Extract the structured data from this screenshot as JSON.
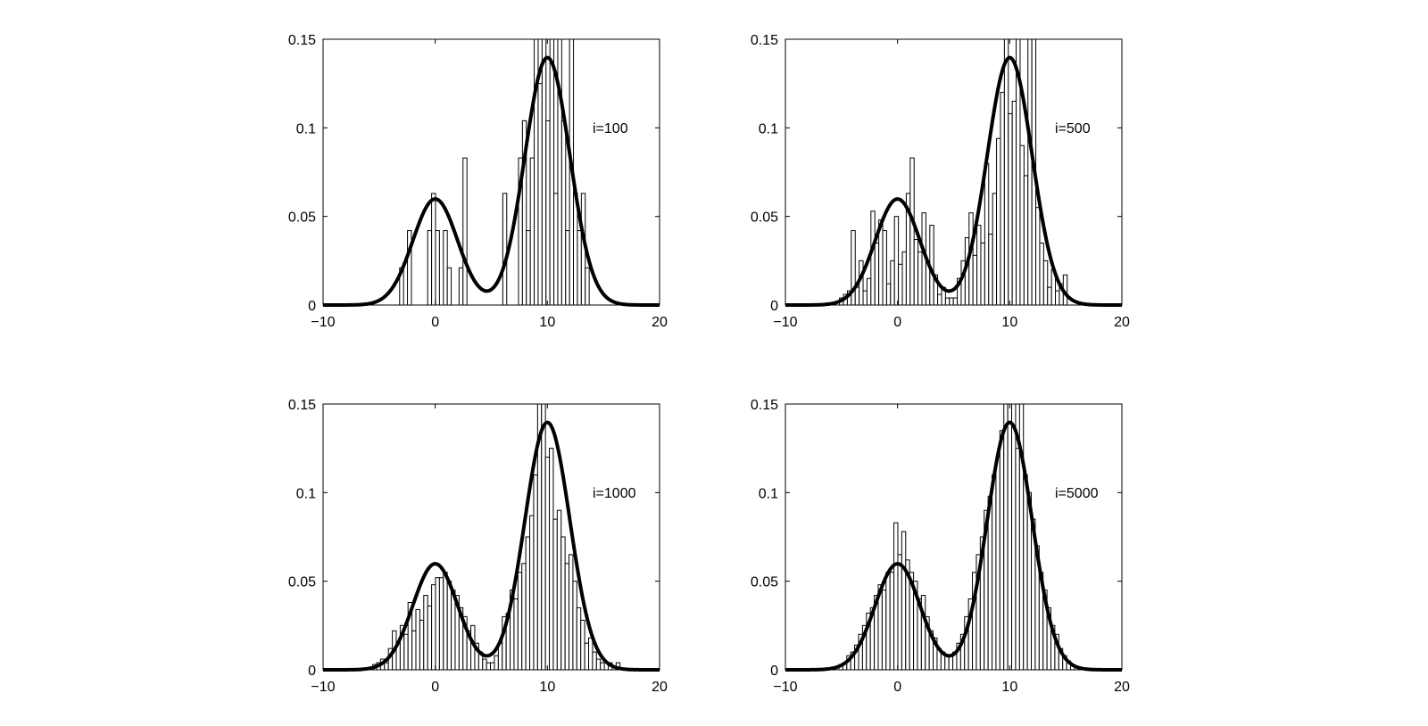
{
  "chart_data": [
    {
      "type": "bar",
      "label": "i=100",
      "xlim": [
        -10,
        20
      ],
      "ylim": [
        0,
        0.15
      ],
      "xticks": [
        -10,
        0,
        10,
        20
      ],
      "xtick_labels": [
        "−10",
        "0",
        "10",
        "20"
      ],
      "yticks": [
        0,
        0.05,
        0.1,
        0.15
      ],
      "ytick_labels": [
        "0",
        "0.05",
        "0.1",
        "0.15"
      ],
      "bin_width": 0.35,
      "histogram": [
        {
          "x": -3.0,
          "y": 0.021
        },
        {
          "x": -2.3,
          "y": 0.042
        },
        {
          "x": -0.5,
          "y": 0.042
        },
        {
          "x": -0.15,
          "y": 0.063
        },
        {
          "x": 0.2,
          "y": 0.042
        },
        {
          "x": 0.9,
          "y": 0.042
        },
        {
          "x": 1.25,
          "y": 0.021
        },
        {
          "x": 2.3,
          "y": 0.021
        },
        {
          "x": 2.65,
          "y": 0.083
        },
        {
          "x": 6.2,
          "y": 0.063
        },
        {
          "x": 7.6,
          "y": 0.083
        },
        {
          "x": 7.95,
          "y": 0.104
        },
        {
          "x": 8.3,
          "y": 0.042
        },
        {
          "x": 8.65,
          "y": 0.083
        },
        {
          "x": 9.0,
          "y": 0.15
        },
        {
          "x": 9.35,
          "y": 0.125
        },
        {
          "x": 9.7,
          "y": 0.15
        },
        {
          "x": 10.05,
          "y": 0.104
        },
        {
          "x": 10.4,
          "y": 0.15
        },
        {
          "x": 10.75,
          "y": 0.063
        },
        {
          "x": 11.1,
          "y": 0.15
        },
        {
          "x": 11.45,
          "y": 0.104
        },
        {
          "x": 11.8,
          "y": 0.042
        },
        {
          "x": 12.15,
          "y": 0.15
        },
        {
          "x": 12.5,
          "y": 0.063
        },
        {
          "x": 12.85,
          "y": 0.042
        },
        {
          "x": 13.2,
          "y": 0.063
        },
        {
          "x": 13.55,
          "y": 0.021
        }
      ]
    },
    {
      "type": "bar",
      "label": "i=500",
      "xlim": [
        -10,
        20
      ],
      "ylim": [
        0,
        0.15
      ],
      "xticks": [
        -10,
        0,
        10,
        20
      ],
      "xtick_labels": [
        "−10",
        "0",
        "10",
        "20"
      ],
      "yticks": [
        0,
        0.05,
        0.1,
        0.15
      ],
      "ytick_labels": [
        "0",
        "0.05",
        "0.1",
        "0.15"
      ],
      "bin_width": 0.35,
      "histogram": [
        {
          "x": -5.0,
          "y": 0.004
        },
        {
          "x": -4.65,
          "y": 0.006
        },
        {
          "x": -4.3,
          "y": 0.008
        },
        {
          "x": -3.95,
          "y": 0.042
        },
        {
          "x": -3.6,
          "y": 0.01
        },
        {
          "x": -3.25,
          "y": 0.025
        },
        {
          "x": -2.9,
          "y": 0.008
        },
        {
          "x": -2.55,
          "y": 0.015
        },
        {
          "x": -2.2,
          "y": 0.053
        },
        {
          "x": -1.85,
          "y": 0.035
        },
        {
          "x": -1.5,
          "y": 0.048
        },
        {
          "x": -1.15,
          "y": 0.042
        },
        {
          "x": -0.8,
          "y": 0.012
        },
        {
          "x": -0.45,
          "y": 0.025
        },
        {
          "x": -0.1,
          "y": 0.05
        },
        {
          "x": 0.25,
          "y": 0.023
        },
        {
          "x": 0.6,
          "y": 0.03
        },
        {
          "x": 0.95,
          "y": 0.063
        },
        {
          "x": 1.3,
          "y": 0.083
        },
        {
          "x": 1.65,
          "y": 0.037
        },
        {
          "x": 2.0,
          "y": 0.03
        },
        {
          "x": 2.35,
          "y": 0.052
        },
        {
          "x": 2.7,
          "y": 0.025
        },
        {
          "x": 3.05,
          "y": 0.045
        },
        {
          "x": 3.4,
          "y": 0.017
        },
        {
          "x": 3.75,
          "y": 0.006
        },
        {
          "x": 4.1,
          "y": 0.01
        },
        {
          "x": 4.45,
          "y": 0.004
        },
        {
          "x": 4.8,
          "y": 0.004
        },
        {
          "x": 5.15,
          "y": 0.004
        },
        {
          "x": 5.5,
          "y": 0.015
        },
        {
          "x": 5.85,
          "y": 0.025
        },
        {
          "x": 6.2,
          "y": 0.038
        },
        {
          "x": 6.55,
          "y": 0.052
        },
        {
          "x": 6.9,
          "y": 0.028
        },
        {
          "x": 7.25,
          "y": 0.045
        },
        {
          "x": 7.6,
          "y": 0.035
        },
        {
          "x": 7.95,
          "y": 0.08
        },
        {
          "x": 8.3,
          "y": 0.04
        },
        {
          "x": 8.65,
          "y": 0.063
        },
        {
          "x": 9.0,
          "y": 0.094
        },
        {
          "x": 9.35,
          "y": 0.12
        },
        {
          "x": 9.7,
          "y": 0.15
        },
        {
          "x": 10.05,
          "y": 0.108
        },
        {
          "x": 10.4,
          "y": 0.115
        },
        {
          "x": 10.75,
          "y": 0.15
        },
        {
          "x": 11.1,
          "y": 0.09
        },
        {
          "x": 11.45,
          "y": 0.073
        },
        {
          "x": 11.8,
          "y": 0.15
        },
        {
          "x": 12.15,
          "y": 0.15
        },
        {
          "x": 12.5,
          "y": 0.055
        },
        {
          "x": 12.85,
          "y": 0.035
        },
        {
          "x": 13.2,
          "y": 0.025
        },
        {
          "x": 13.55,
          "y": 0.01
        },
        {
          "x": 13.9,
          "y": 0.02
        },
        {
          "x": 14.25,
          "y": 0.008
        },
        {
          "x": 14.6,
          "y": 0.012
        },
        {
          "x": 14.95,
          "y": 0.017
        }
      ]
    },
    {
      "type": "bar",
      "label": "i=1000",
      "xlim": [
        -10,
        20
      ],
      "ylim": [
        0,
        0.15
      ],
      "xticks": [
        -10,
        0,
        10,
        20
      ],
      "xtick_labels": [
        "−10",
        "0",
        "10",
        "20"
      ],
      "yticks": [
        0,
        0.05,
        0.1,
        0.15
      ],
      "ytick_labels": [
        "0",
        "0.05",
        "0.1",
        "0.15"
      ],
      "bin_width": 0.35,
      "histogram": [
        {
          "x": -5.4,
          "y": 0.003
        },
        {
          "x": -5.05,
          "y": 0.004
        },
        {
          "x": -4.7,
          "y": 0.006
        },
        {
          "x": -4.35,
          "y": 0.004
        },
        {
          "x": -4.0,
          "y": 0.012
        },
        {
          "x": -3.65,
          "y": 0.022
        },
        {
          "x": -3.3,
          "y": 0.015
        },
        {
          "x": -2.95,
          "y": 0.025
        },
        {
          "x": -2.6,
          "y": 0.02
        },
        {
          "x": -2.25,
          "y": 0.038
        },
        {
          "x": -1.9,
          "y": 0.022
        },
        {
          "x": -1.55,
          "y": 0.034
        },
        {
          "x": -1.2,
          "y": 0.028
        },
        {
          "x": -0.85,
          "y": 0.042
        },
        {
          "x": -0.5,
          "y": 0.036
        },
        {
          "x": -0.15,
          "y": 0.048
        },
        {
          "x": 0.2,
          "y": 0.052
        },
        {
          "x": 0.55,
          "y": 0.052
        },
        {
          "x": 0.9,
          "y": 0.055
        },
        {
          "x": 1.25,
          "y": 0.05
        },
        {
          "x": 1.6,
          "y": 0.045
        },
        {
          "x": 1.95,
          "y": 0.042
        },
        {
          "x": 2.3,
          "y": 0.035
        },
        {
          "x": 2.65,
          "y": 0.03
        },
        {
          "x": 3.0,
          "y": 0.022
        },
        {
          "x": 3.35,
          "y": 0.025
        },
        {
          "x": 3.7,
          "y": 0.015
        },
        {
          "x": 4.05,
          "y": 0.01
        },
        {
          "x": 4.4,
          "y": 0.006
        },
        {
          "x": 4.75,
          "y": 0.004
        },
        {
          "x": 5.1,
          "y": 0.004
        },
        {
          "x": 5.45,
          "y": 0.008
        },
        {
          "x": 5.8,
          "y": 0.015
        },
        {
          "x": 6.15,
          "y": 0.03
        },
        {
          "x": 6.5,
          "y": 0.032
        },
        {
          "x": 6.85,
          "y": 0.045
        },
        {
          "x": 7.2,
          "y": 0.04
        },
        {
          "x": 7.55,
          "y": 0.055
        },
        {
          "x": 7.9,
          "y": 0.06
        },
        {
          "x": 8.25,
          "y": 0.075
        },
        {
          "x": 8.6,
          "y": 0.087
        },
        {
          "x": 8.95,
          "y": 0.11
        },
        {
          "x": 9.3,
          "y": 0.15
        },
        {
          "x": 9.65,
          "y": 0.15
        },
        {
          "x": 10.0,
          "y": 0.12
        },
        {
          "x": 10.35,
          "y": 0.125
        },
        {
          "x": 10.7,
          "y": 0.085
        },
        {
          "x": 11.05,
          "y": 0.09
        },
        {
          "x": 11.4,
          "y": 0.075
        },
        {
          "x": 11.75,
          "y": 0.06
        },
        {
          "x": 12.1,
          "y": 0.065
        },
        {
          "x": 12.45,
          "y": 0.05
        },
        {
          "x": 12.8,
          "y": 0.035
        },
        {
          "x": 13.15,
          "y": 0.028
        },
        {
          "x": 13.5,
          "y": 0.015
        },
        {
          "x": 13.85,
          "y": 0.018
        },
        {
          "x": 14.2,
          "y": 0.01
        },
        {
          "x": 14.55,
          "y": 0.006
        },
        {
          "x": 14.9,
          "y": 0.004
        },
        {
          "x": 15.6,
          "y": 0.004
        },
        {
          "x": 16.3,
          "y": 0.004
        }
      ]
    },
    {
      "type": "bar",
      "label": "i=5000",
      "xlim": [
        -10,
        20
      ],
      "ylim": [
        0,
        0.15
      ],
      "xticks": [
        -10,
        0,
        10,
        20
      ],
      "xtick_labels": [
        "−10",
        "0",
        "10",
        "20"
      ],
      "yticks": [
        0,
        0.05,
        0.1,
        0.15
      ],
      "ytick_labels": [
        "0",
        "0.05",
        "0.1",
        "0.15"
      ],
      "bin_width": 0.35,
      "histogram": [
        {
          "x": -5.05,
          "y": 0.003
        },
        {
          "x": -4.7,
          "y": 0.004
        },
        {
          "x": -4.35,
          "y": 0.008
        },
        {
          "x": -4.0,
          "y": 0.01
        },
        {
          "x": -3.65,
          "y": 0.014
        },
        {
          "x": -3.3,
          "y": 0.02
        },
        {
          "x": -2.95,
          "y": 0.025
        },
        {
          "x": -2.6,
          "y": 0.032
        },
        {
          "x": -2.25,
          "y": 0.035
        },
        {
          "x": -1.9,
          "y": 0.042
        },
        {
          "x": -1.55,
          "y": 0.048
        },
        {
          "x": -1.2,
          "y": 0.045
        },
        {
          "x": -0.85,
          "y": 0.055
        },
        {
          "x": -0.5,
          "y": 0.055
        },
        {
          "x": -0.15,
          "y": 0.083
        },
        {
          "x": 0.2,
          "y": 0.065
        },
        {
          "x": 0.55,
          "y": 0.078
        },
        {
          "x": 0.9,
          "y": 0.062
        },
        {
          "x": 1.25,
          "y": 0.055
        },
        {
          "x": 1.6,
          "y": 0.05
        },
        {
          "x": 1.95,
          "y": 0.04
        },
        {
          "x": 2.3,
          "y": 0.042
        },
        {
          "x": 2.65,
          "y": 0.03
        },
        {
          "x": 3.0,
          "y": 0.022
        },
        {
          "x": 3.35,
          "y": 0.018
        },
        {
          "x": 3.7,
          "y": 0.012
        },
        {
          "x": 4.05,
          "y": 0.01
        },
        {
          "x": 4.4,
          "y": 0.008
        },
        {
          "x": 4.75,
          "y": 0.008
        },
        {
          "x": 5.1,
          "y": 0.01
        },
        {
          "x": 5.45,
          "y": 0.015
        },
        {
          "x": 5.8,
          "y": 0.02
        },
        {
          "x": 6.15,
          "y": 0.03
        },
        {
          "x": 6.5,
          "y": 0.04
        },
        {
          "x": 6.85,
          "y": 0.055
        },
        {
          "x": 7.2,
          "y": 0.065
        },
        {
          "x": 7.55,
          "y": 0.075
        },
        {
          "x": 7.9,
          "y": 0.09
        },
        {
          "x": 8.25,
          "y": 0.098
        },
        {
          "x": 8.6,
          "y": 0.11
        },
        {
          "x": 8.95,
          "y": 0.12
        },
        {
          "x": 9.3,
          "y": 0.135
        },
        {
          "x": 9.65,
          "y": 0.15
        },
        {
          "x": 10.0,
          "y": 0.15
        },
        {
          "x": 10.35,
          "y": 0.15
        },
        {
          "x": 10.7,
          "y": 0.125
        },
        {
          "x": 11.05,
          "y": 0.15
        },
        {
          "x": 11.4,
          "y": 0.11
        },
        {
          "x": 11.75,
          "y": 0.1
        },
        {
          "x": 12.1,
          "y": 0.085
        },
        {
          "x": 12.45,
          "y": 0.07
        },
        {
          "x": 12.8,
          "y": 0.055
        },
        {
          "x": 13.15,
          "y": 0.045
        },
        {
          "x": 13.5,
          "y": 0.035
        },
        {
          "x": 13.85,
          "y": 0.025
        },
        {
          "x": 14.2,
          "y": 0.02
        },
        {
          "x": 14.55,
          "y": 0.012
        },
        {
          "x": 14.9,
          "y": 0.008
        },
        {
          "x": 15.25,
          "y": 0.005
        },
        {
          "x": 15.6,
          "y": 0.003
        }
      ]
    }
  ],
  "density_curve": {
    "type": "line",
    "components": [
      {
        "weight": 0.3,
        "mean": 0,
        "sd": 2
      },
      {
        "weight": 0.7,
        "mean": 10,
        "sd": 2
      }
    ]
  }
}
